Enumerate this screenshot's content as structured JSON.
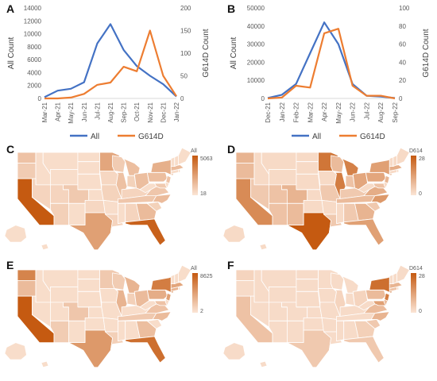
{
  "panels": {
    "A": "A",
    "B": "B",
    "C": "C",
    "D": "D",
    "E": "E",
    "F": "F"
  },
  "colors": {
    "all": "#4472C4",
    "g614d": "#ED7D31",
    "map_high": "#C55A11",
    "map_low": "#FBE5D6",
    "map_border": "#ffffff"
  },
  "chart_data": [
    {
      "type": "line",
      "panel": "A",
      "categories": [
        "Mar-21",
        "Apr-21",
        "May-21",
        "Jun-21",
        "Jul-21",
        "Aug-21",
        "Sep-21",
        "Oct-21",
        "Nov-21",
        "Dec-21",
        "Jan-22"
      ],
      "ylabel": "All Count",
      "y2label": "G614D Count",
      "ylim": [
        0,
        14000
      ],
      "yticks": [
        "0",
        "2000",
        "4000",
        "6000",
        "8000",
        "10000",
        "12000",
        "14000"
      ],
      "y2lim": [
        0,
        200
      ],
      "y2ticks": [
        "0",
        "50",
        "100",
        "150",
        "200"
      ],
      "series": [
        {
          "name": "All",
          "axis": "left",
          "values": [
            200,
            1200,
            1500,
            2500,
            8500,
            11500,
            7500,
            5000,
            3500,
            2200,
            300
          ]
        },
        {
          "name": "G614D",
          "axis": "right",
          "values": [
            0,
            0,
            2,
            10,
            30,
            35,
            70,
            60,
            150,
            50,
            5
          ]
        }
      ],
      "legend": [
        "All",
        "G614D"
      ]
    },
    {
      "type": "line",
      "panel": "B",
      "categories": [
        "Dec-21",
        "Jan-22",
        "Feb-22",
        "Mar-22",
        "Apr-22",
        "May-22",
        "Jun-22",
        "Jul-22",
        "Aug-22",
        "Sep-22"
      ],
      "ylabel": "All Count",
      "y2label": "G614D Count",
      "ylim": [
        0,
        50000
      ],
      "yticks": [
        "0",
        "10000",
        "20000",
        "30000",
        "40000",
        "50000"
      ],
      "y2lim": [
        0,
        100
      ],
      "y2ticks": [
        "0",
        "20",
        "40",
        "60",
        "80",
        "100"
      ],
      "series": [
        {
          "name": "All",
          "axis": "left",
          "values": [
            200,
            2000,
            8000,
            25000,
            42000,
            30000,
            8000,
            1500,
            1000,
            200
          ]
        },
        {
          "name": "G614D",
          "axis": "right",
          "values": [
            0,
            1,
            14,
            12,
            72,
            77,
            14,
            3,
            3,
            0
          ]
        }
      ],
      "legend": [
        "All",
        "G614D"
      ]
    }
  ],
  "maps": [
    {
      "panel": "C",
      "legend_title": "All",
      "legend_max": "5063",
      "legend_min": "18"
    },
    {
      "panel": "D",
      "legend_title": "D614",
      "legend_max": "28",
      "legend_min": "0"
    },
    {
      "panel": "E",
      "legend_title": "All",
      "legend_max": "8625",
      "legend_min": "2"
    },
    {
      "panel": "F",
      "legend_title": "D614",
      "legend_max": "28",
      "legend_min": "0"
    }
  ]
}
